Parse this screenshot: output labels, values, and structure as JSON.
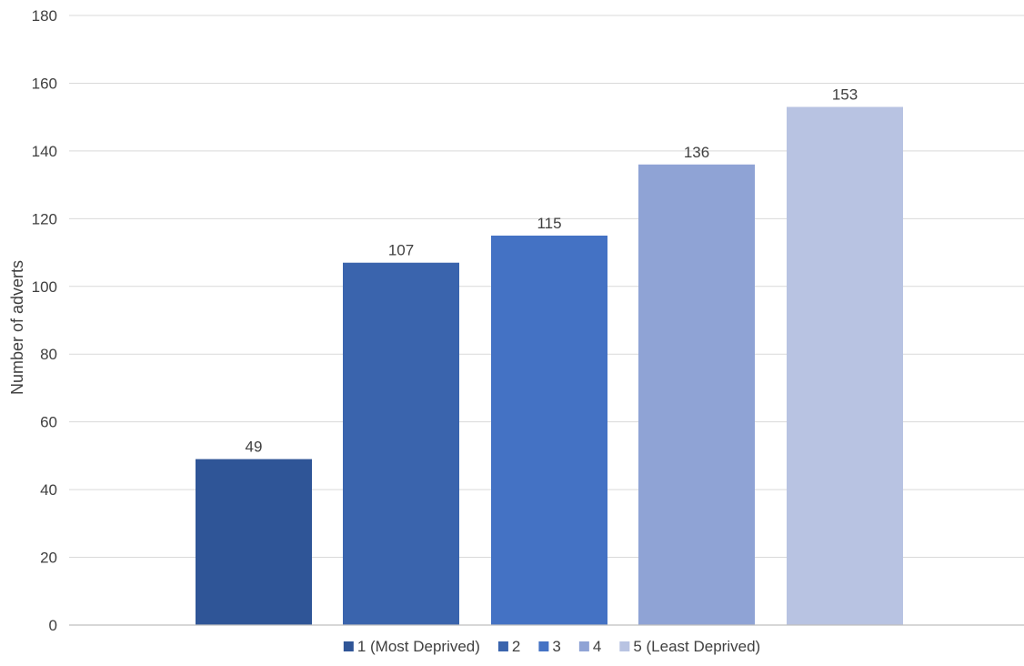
{
  "chart_data": {
    "type": "bar",
    "ylabel": "Number of adverts",
    "ylim": [
      0,
      180
    ],
    "y_ticks": [
      0,
      20,
      40,
      60,
      80,
      100,
      120,
      140,
      160,
      180
    ],
    "y_tick_labels": [
      "0",
      "20",
      "40",
      "60",
      "80",
      "100",
      "120",
      "140",
      "160",
      "180"
    ],
    "grid": true,
    "legend_position": "bottom",
    "series": [
      {
        "name": "1 (Most Deprived)",
        "value": 49,
        "label": "49",
        "color": "#2f5597"
      },
      {
        "name": "2",
        "value": 107,
        "label": "107",
        "color": "#3a64ad"
      },
      {
        "name": "3",
        "value": 115,
        "label": "115",
        "color": "#4472c4"
      },
      {
        "name": "4",
        "value": 136,
        "label": "136",
        "color": "#8fa3d5"
      },
      {
        "name": "5 (Least Deprived)",
        "value": 153,
        "label": "153",
        "color": "#b8c3e2"
      }
    ]
  }
}
